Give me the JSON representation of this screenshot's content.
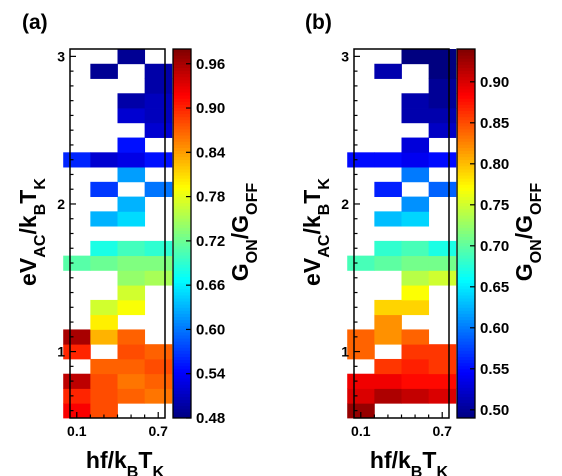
{
  "chart_data": [
    {
      "type": "heatmap",
      "panel_label": "(a)",
      "xlabel": {
        "main": "hf/k",
        "sub": "B",
        "main2": "T",
        "sub2": "K"
      },
      "ylabel": {
        "main": "eV",
        "sub": "AC",
        "main2": "/k",
        "sub2": "B",
        "main3": "T",
        "sub3": "K"
      },
      "colorbar_label": {
        "main": "G",
        "sub": "ON",
        "main2": "/G",
        "sub2": "OFF"
      },
      "xlim": [
        0.05,
        0.75
      ],
      "ylim": [
        0.55,
        3.05
      ],
      "x_ticks": [
        0.1,
        0.7
      ],
      "x_tick_labels": [
        "0.1",
        "0.7"
      ],
      "y_ticks": [
        1,
        2,
        3
      ],
      "y_tick_labels": [
        "1",
        "2",
        "3"
      ],
      "colorbar_range": [
        0.48,
        0.98
      ],
      "colorbar_ticks": [
        0.48,
        0.54,
        0.6,
        0.66,
        0.72,
        0.78,
        0.84,
        0.9,
        0.96
      ],
      "colorbar_tick_labels": [
        "0.48",
        "0.54",
        "0.60",
        "0.66",
        "0.72",
        "0.78",
        "0.84",
        "0.90",
        "0.96"
      ],
      "x": [
        0.1,
        0.3,
        0.5,
        0.7
      ],
      "y": [
        0.6,
        0.7,
        0.8,
        0.9,
        1.0,
        1.1,
        1.2,
        1.3,
        1.4,
        1.5,
        1.6,
        1.7,
        1.8,
        1.9,
        2.0,
        2.1,
        2.2,
        2.3,
        2.4,
        2.5,
        2.6,
        2.7,
        2.8,
        2.9,
        3.0
      ],
      "z": [
        [
          0.92,
          0.88,
          null,
          null
        ],
        [
          0.9,
          0.88,
          0.87,
          0.86
        ],
        [
          0.95,
          0.88,
          0.86,
          0.87
        ],
        [
          null,
          0.87,
          0.87,
          0.88
        ],
        [
          0.9,
          null,
          0.88,
          0.87
        ],
        [
          0.96,
          0.83,
          0.87,
          null
        ],
        [
          null,
          0.8,
          null,
          null
        ],
        [
          null,
          0.77,
          0.79,
          null
        ],
        [
          null,
          null,
          0.77,
          null
        ],
        [
          null,
          null,
          0.74,
          0.75
        ],
        [
          0.71,
          0.72,
          0.73,
          0.73
        ],
        [
          null,
          0.68,
          0.7,
          0.69
        ],
        [
          null,
          null,
          null,
          null
        ],
        [
          null,
          0.63,
          0.65,
          null
        ],
        [
          null,
          null,
          0.63,
          null
        ],
        [
          null,
          0.57,
          null,
          0.6
        ],
        [
          null,
          null,
          0.62,
          null
        ],
        [
          0.56,
          0.52,
          0.53,
          0.55
        ],
        [
          null,
          null,
          0.55,
          null
        ],
        [
          null,
          null,
          null,
          0.52
        ],
        [
          null,
          null,
          0.52,
          0.51
        ],
        [
          null,
          null,
          0.5,
          0.51
        ],
        [
          null,
          null,
          null,
          0.5
        ],
        [
          null,
          0.49,
          null,
          0.5
        ],
        [
          null,
          null,
          0.49,
          null
        ]
      ]
    },
    {
      "type": "heatmap",
      "panel_label": "(b)",
      "xlabel": {
        "main": "hf/k",
        "sub": "B",
        "main2": "T",
        "sub2": "K"
      },
      "ylabel": {
        "main": "eV",
        "sub": "AC",
        "main2": "/k",
        "sub2": "B",
        "main3": "T",
        "sub3": "K"
      },
      "colorbar_label": {
        "main": "G",
        "sub": "ON",
        "main2": "/G",
        "sub2": "OFF"
      },
      "xlim": [
        0.05,
        0.75
      ],
      "ylim": [
        0.55,
        3.05
      ],
      "x_ticks": [
        0.1,
        0.7
      ],
      "x_tick_labels": [
        "0.1",
        "0.7"
      ],
      "y_ticks": [
        1,
        2,
        3
      ],
      "y_tick_labels": [
        "1",
        "2",
        "3"
      ],
      "colorbar_range": [
        0.49,
        0.94
      ],
      "colorbar_ticks": [
        0.5,
        0.55,
        0.6,
        0.65,
        0.7,
        0.75,
        0.8,
        0.85,
        0.9
      ],
      "colorbar_tick_labels": [
        "0.50",
        "0.55",
        "0.60",
        "0.65",
        "0.70",
        "0.75",
        "0.80",
        "0.85",
        "0.90"
      ],
      "x": [
        0.1,
        0.3,
        0.5,
        0.7
      ],
      "y": [
        0.6,
        0.7,
        0.8,
        0.9,
        1.0,
        1.1,
        1.2,
        1.3,
        1.4,
        1.5,
        1.6,
        1.7,
        1.8,
        1.9,
        2.0,
        2.1,
        2.2,
        2.3,
        2.4,
        2.5,
        2.6,
        2.7,
        2.8,
        2.9,
        3.0
      ],
      "z": [
        [
          0.93,
          null,
          null,
          null
        ],
        [
          0.9,
          0.92,
          0.91,
          0.9
        ],
        [
          0.89,
          0.89,
          0.88,
          0.88
        ],
        [
          null,
          0.86,
          0.87,
          0.86
        ],
        [
          0.84,
          null,
          0.86,
          0.86
        ],
        [
          0.84,
          0.82,
          0.84,
          null
        ],
        [
          null,
          0.82,
          null,
          null
        ],
        [
          null,
          0.79,
          0.79,
          null
        ],
        [
          null,
          null,
          0.77,
          null
        ],
        [
          null,
          null,
          0.74,
          0.75
        ],
        [
          0.69,
          0.7,
          0.71,
          0.71
        ],
        [
          null,
          0.68,
          0.69,
          0.67
        ],
        [
          null,
          null,
          null,
          null
        ],
        [
          null,
          0.63,
          0.64,
          null
        ],
        [
          null,
          null,
          0.61,
          null
        ],
        [
          null,
          0.56,
          null,
          0.59
        ],
        [
          null,
          null,
          0.6,
          null
        ],
        [
          0.55,
          0.55,
          0.54,
          0.55
        ],
        [
          null,
          null,
          0.53,
          null
        ],
        [
          null,
          null,
          null,
          0.52
        ],
        [
          null,
          null,
          0.51,
          0.51
        ],
        [
          null,
          null,
          0.51,
          0.5
        ],
        [
          null,
          null,
          null,
          0.5
        ],
        [
          null,
          0.51,
          null,
          0.49
        ],
        [
          null,
          null,
          0.49,
          0.49
        ]
      ]
    }
  ]
}
